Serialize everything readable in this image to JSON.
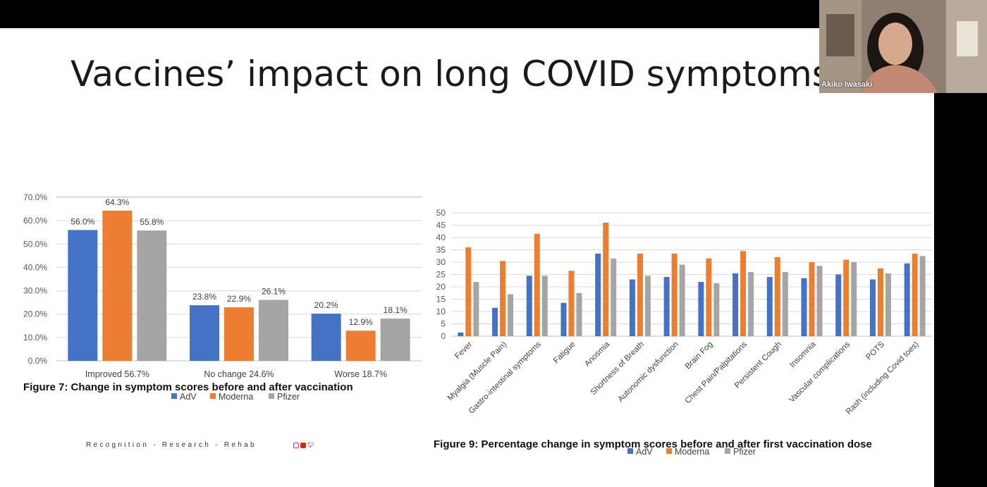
{
  "slide": {
    "title": "Vaccines’ impact on long COVID symptoms",
    "fig7_caption": "Figure 7:  Change in symptom scores before and after vaccination",
    "fig9_caption": "Figure 9:  Percentage change in symptom scores before and after first vaccination dose",
    "footer": "Recognition - Research - Rehab"
  },
  "webcam": {
    "name": "Akiko Iwasaki"
  },
  "colors": {
    "adv": "#4472c4",
    "moderna": "#ed7d31",
    "pfizer": "#a5a5a5"
  },
  "chart_data": [
    {
      "type": "bar",
      "categories": [
        "Improved 56.7%",
        "No change 24.6%",
        "Worse 18.7%"
      ],
      "series": [
        {
          "name": "AdV",
          "values": [
            56.0,
            23.8,
            20.2
          ],
          "labels": [
            "56.0%",
            "23.8%",
            "20.2%"
          ]
        },
        {
          "name": "Moderna",
          "values": [
            64.3,
            22.9,
            12.9
          ],
          "labels": [
            "64.3%",
            "22.9%",
            "12.9%"
          ]
        },
        {
          "name": "Pfizer",
          "values": [
            55.8,
            26.1,
            18.1
          ],
          "labels": [
            "55.8%",
            "26.1%",
            "18.1%"
          ]
        }
      ],
      "ylim": [
        0,
        70
      ],
      "yticks": [
        0,
        10,
        20,
        30,
        40,
        50,
        60,
        70
      ],
      "ytick_labels": [
        "0.0%",
        "10.0%",
        "20.0%",
        "30.0%",
        "40.0%",
        "50.0%",
        "60.0%",
        "70.0%"
      ],
      "legend": "bottom",
      "grid": true,
      "title": "Figure 7:  Change in symptom scores before and after vaccination"
    },
    {
      "type": "bar",
      "categories": [
        "Fever",
        "Myalgia (Muscle Pain)",
        "Gastro-intestinal symptoms",
        "Fatigue",
        "Anosmia",
        "Shortness of Breath",
        "Autonomic dysfunction",
        "Brain Fog",
        "Chest Pain/Palpitations",
        "Persistent Cough",
        "Insomnia",
        "Vascular complications",
        "POTS",
        "Rash (including Covid toes)"
      ],
      "series": [
        {
          "name": "AdV",
          "values": [
            1.5,
            11.5,
            24.5,
            13.5,
            33.5,
            23,
            24,
            22,
            25.5,
            24,
            23.5,
            25,
            23,
            29.5
          ]
        },
        {
          "name": "Moderna",
          "values": [
            36,
            30.5,
            41.5,
            26.5,
            46,
            33.5,
            33.5,
            31.5,
            34.5,
            32,
            30,
            31,
            27.5,
            33.5
          ]
        },
        {
          "name": "Pfizer",
          "values": [
            22,
            17,
            24.5,
            17.5,
            31.5,
            24.5,
            29,
            21.5,
            26,
            26,
            28.5,
            30,
            25.5,
            32.5
          ]
        }
      ],
      "ylim": [
        0,
        50
      ],
      "yticks": [
        0,
        5,
        10,
        15,
        20,
        25,
        30,
        35,
        40,
        45,
        50
      ],
      "legend": "bottom",
      "grid": true,
      "title": "Figure 9:  Percentage change in symptom scores before and after first vaccination dose"
    }
  ]
}
